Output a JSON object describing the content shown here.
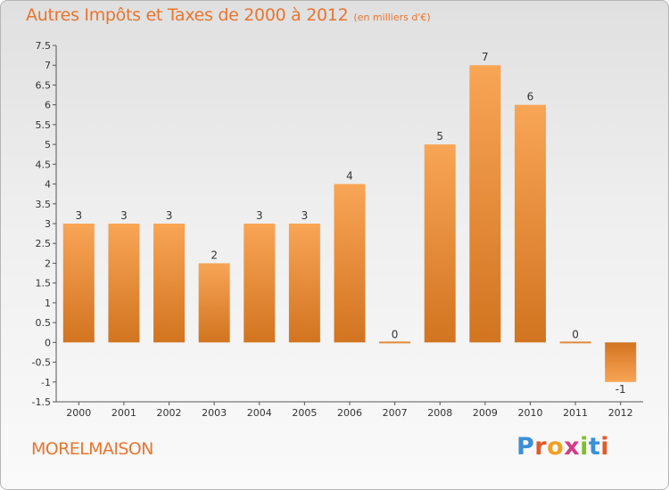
{
  "chart_data": {
    "type": "bar",
    "title": "Autres Impôts et Taxes de 2000 à 2012",
    "subtitle": "(en milliers d'€)",
    "categories": [
      "2000",
      "2001",
      "2002",
      "2003",
      "2004",
      "2005",
      "2006",
      "2007",
      "2008",
      "2009",
      "2010",
      "2011",
      "2012"
    ],
    "values": [
      3,
      3,
      3,
      2,
      3,
      3,
      4,
      0,
      5,
      7,
      6,
      0,
      -1
    ],
    "value_labels": [
      "3",
      "3",
      "3",
      "2",
      "3",
      "3",
      "4",
      "0",
      "5",
      "7",
      "6",
      "0",
      "-1"
    ],
    "ylim": [
      -1.5,
      7.5
    ],
    "yticks": [
      "7.5",
      "7",
      "6.5",
      "6",
      "5.5",
      "5",
      "4.5",
      "4",
      "3.5",
      "3",
      "2.5",
      "2",
      "1.5",
      "1",
      "0.5",
      "0",
      "-0.5",
      "-1",
      "-1.5"
    ],
    "grid": false,
    "bar_color": "#f0943f"
  },
  "footer": {
    "commune": "MORELMAISON",
    "logo_letters": [
      {
        "ch": "P",
        "color": "#3a8fd6"
      },
      {
        "ch": "r",
        "color": "#e05a2a"
      },
      {
        "ch": "o",
        "color": "#f0a020"
      },
      {
        "ch": "x",
        "color": "#d23a8a"
      },
      {
        "ch": "i",
        "color": "#7cbf2a"
      },
      {
        "ch": "t",
        "color": "#3a8fd6"
      },
      {
        "ch": "i",
        "color": "#e05a2a"
      }
    ]
  }
}
